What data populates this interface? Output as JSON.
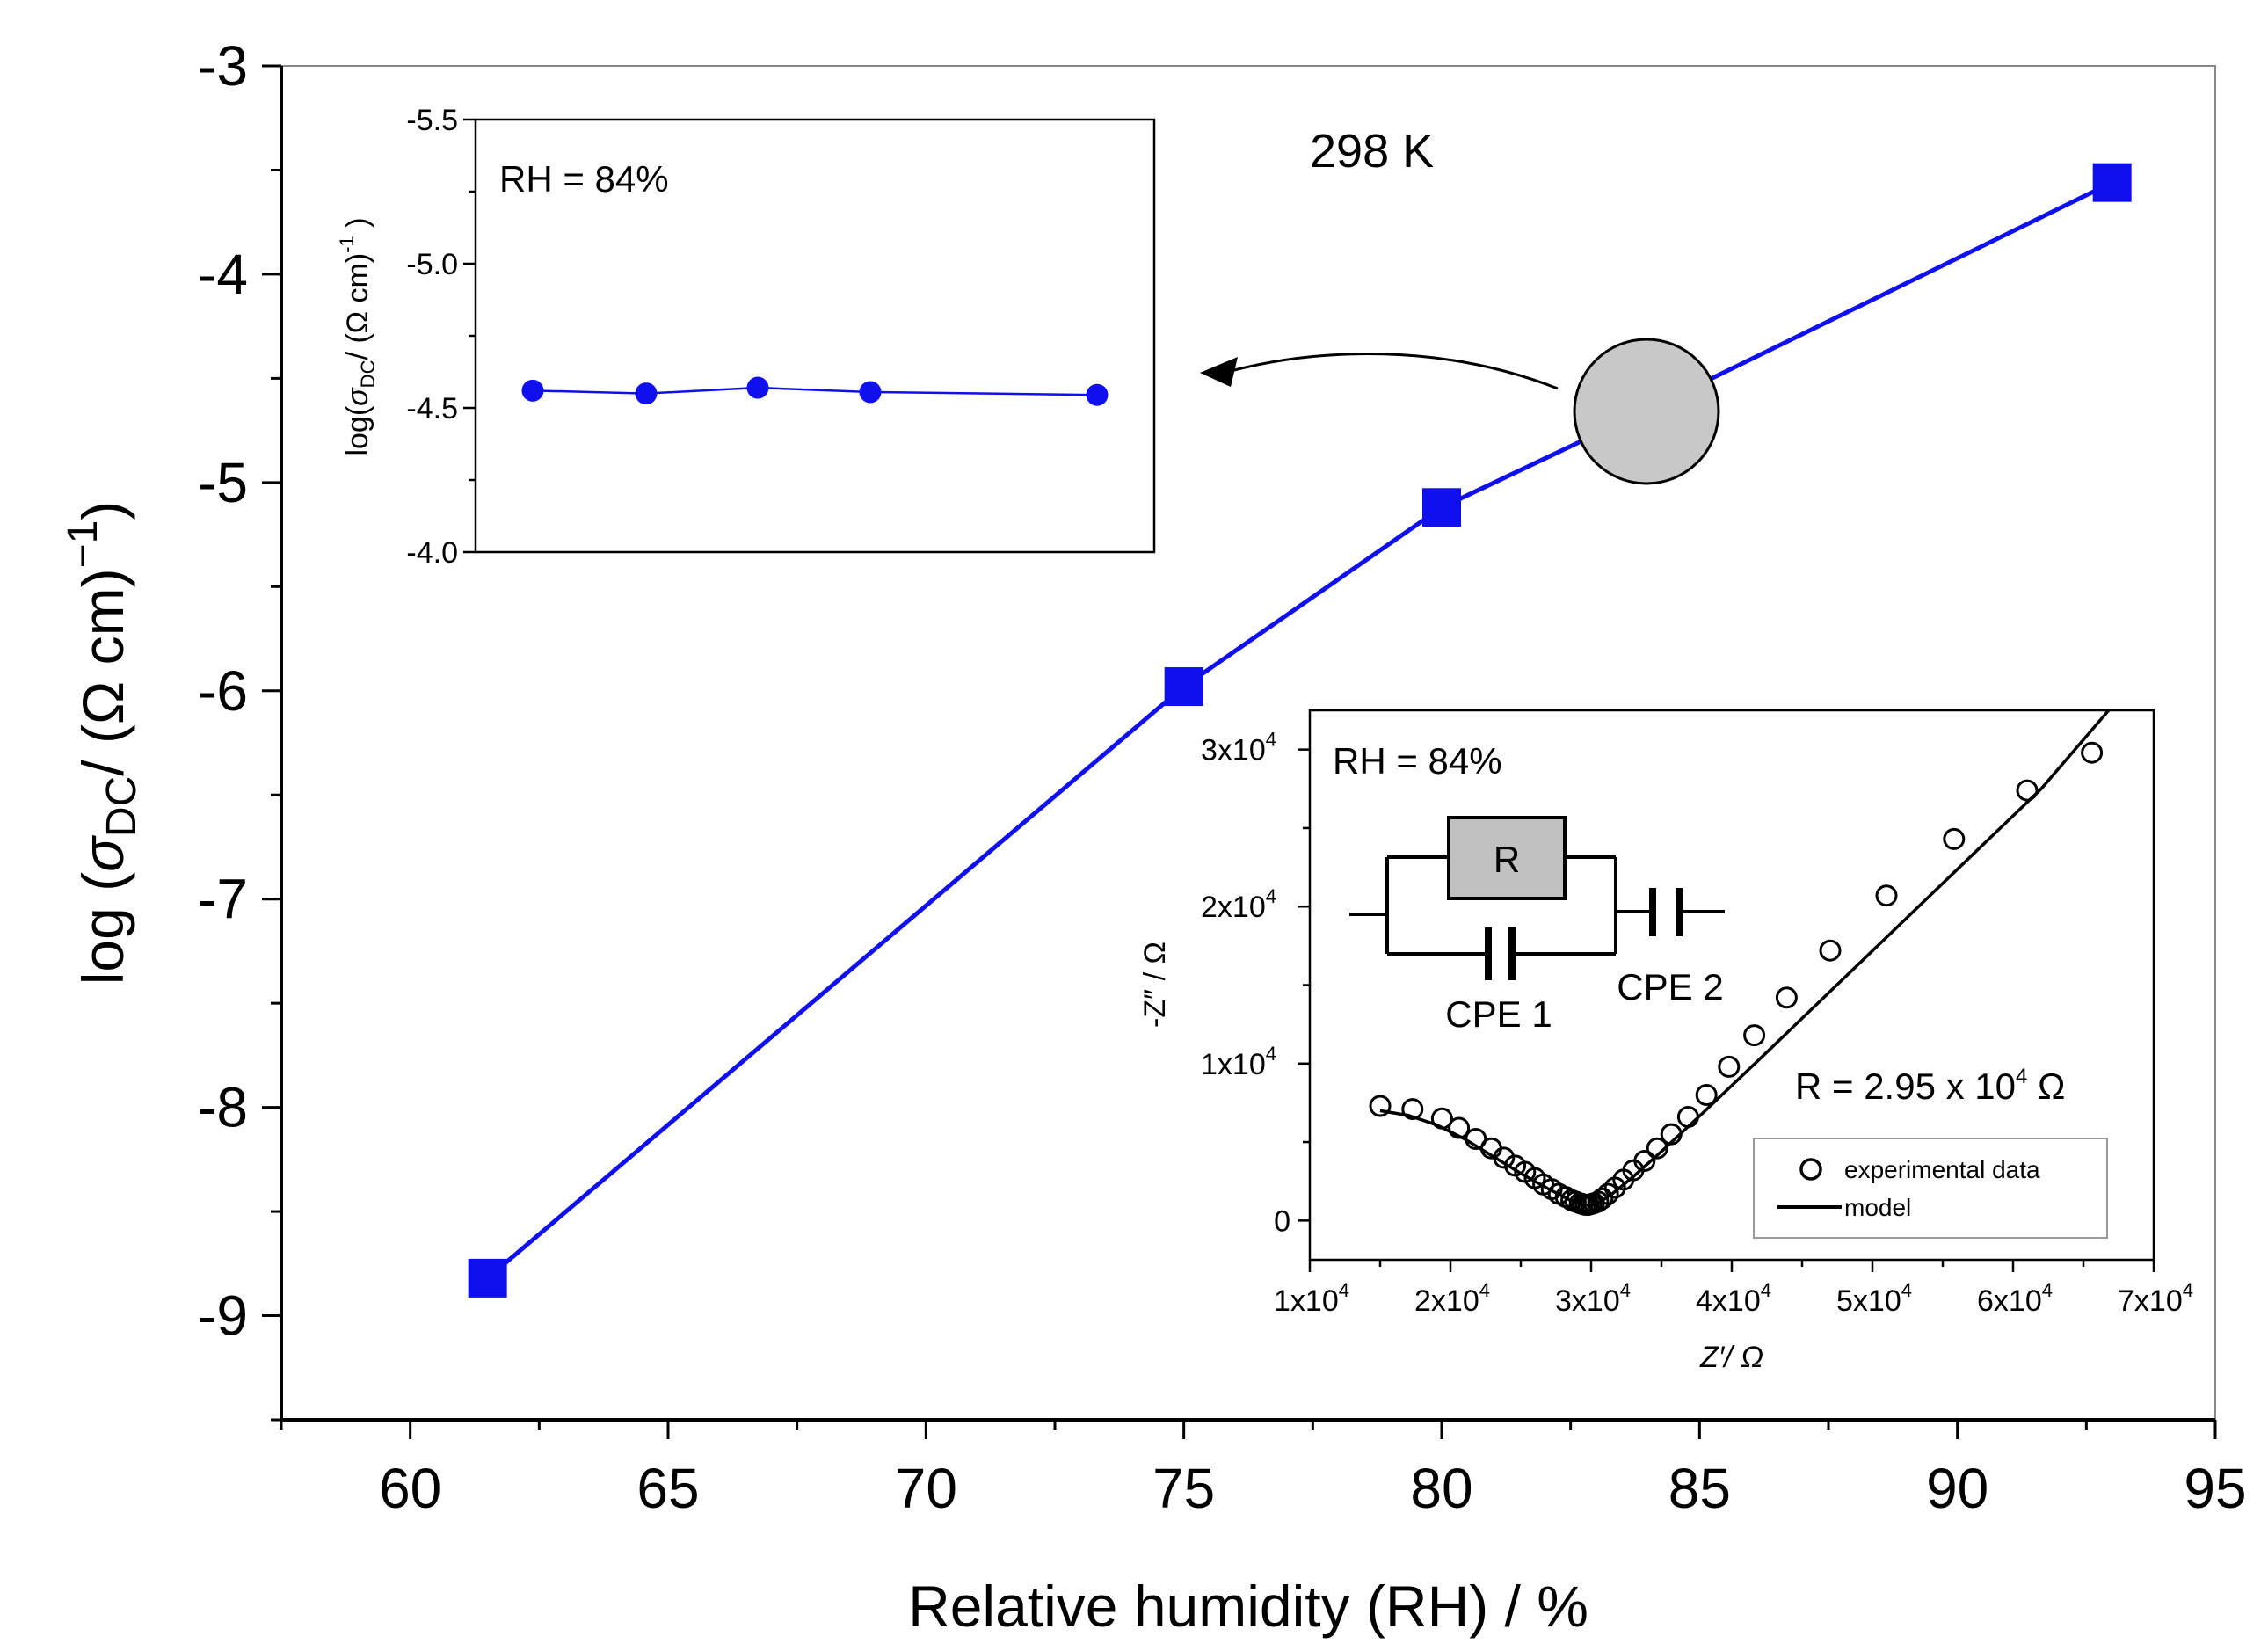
{
  "chart_data": [
    {
      "type": "line",
      "x": [
        61.5,
        75,
        80,
        84,
        93
      ],
      "values": [
        -8.82,
        -5.98,
        -5.12,
        -4.65,
        -3.56
      ],
      "series_name": "log sigma_DC",
      "color": "#1010ee",
      "xlabel": "Relative humidity (RH) / %",
      "ylabel": "log (σDC/ (Ω cm)−1)",
      "xlim": [
        57.5,
        95
      ],
      "ylim": [
        -9.5,
        -3
      ],
      "xticks": [
        "60",
        "65",
        "70",
        "75",
        "80",
        "85",
        "90",
        "95"
      ],
      "yticks": [
        "-3",
        "-4",
        "-5",
        "-6",
        "-7",
        "-8",
        "-9"
      ],
      "annotation": "298 K"
    },
    {
      "type": "line",
      "x": [
        1,
        2,
        3,
        4,
        5
      ],
      "values": [
        -4.56,
        -4.55,
        -4.57,
        -4.555,
        -4.545
      ],
      "color": "#1010ee",
      "ylim": [
        -4.0,
        -5.5
      ],
      "yticks": [
        "-5.5",
        "-5.0",
        "-4.5",
        "-4.0"
      ],
      "ylabel_parts": {
        "a": "log(",
        "sigma": "σ",
        "sub": "DC",
        "b": "/ (Ω cm)",
        "sup": "-1",
        "c": " )"
      },
      "annotation": "RH = 84%"
    },
    {
      "type": "scatter",
      "title": "RH = 84%",
      "xlabel": "Z′/ Ω",
      "ylabel": "-Z″ / Ω",
      "xlim": [
        10000,
        70000
      ],
      "ylim": [
        -2500,
        32500
      ],
      "xticks": [
        {
          "value": 10000,
          "mant": "1x10",
          "exp": "4"
        },
        {
          "value": 20000,
          "mant": "2x10",
          "exp": "4"
        },
        {
          "value": 30000,
          "mant": "3x10",
          "exp": "4"
        },
        {
          "value": 40000,
          "mant": "4x10",
          "exp": "4"
        },
        {
          "value": 50000,
          "mant": "5x10",
          "exp": "4"
        },
        {
          "value": 60000,
          "mant": "6x10",
          "exp": "4"
        },
        {
          "value": 70000,
          "mant": "7x10",
          "exp": "4"
        }
      ],
      "yticks": [
        {
          "value": 0,
          "mant": "0",
          "exp": ""
        },
        {
          "value": 10000,
          "mant": "1x10",
          "exp": "4"
        },
        {
          "value": 20000,
          "mant": "2x10",
          "exp": "4"
        },
        {
          "value": 30000,
          "mant": "3x10",
          "exp": "4"
        }
      ],
      "series": [
        {
          "name": "experimental data",
          "marker": "open-circle",
          "x": [
            15000,
            17300,
            19400,
            20600,
            21800,
            22900,
            23800,
            24600,
            25300,
            26000,
            26600,
            27200,
            27700,
            28200,
            28600,
            28900,
            29200,
            29400,
            29600,
            29800,
            30000,
            30200,
            30500,
            30800,
            31200,
            31700,
            32300,
            33000,
            33800,
            34700,
            35700,
            36900,
            38200,
            39800,
            41600,
            43900,
            47000,
            51000,
            55800,
            61000,
            65600
          ],
          "values": [
            7300,
            7100,
            6500,
            5900,
            5200,
            4600,
            4000,
            3500,
            3100,
            2700,
            2300,
            2000,
            1700,
            1500,
            1300,
            1200,
            1100,
            1050,
            1000,
            1000,
            1050,
            1100,
            1200,
            1400,
            1700,
            2100,
            2600,
            3200,
            3800,
            4600,
            5500,
            6600,
            8000,
            9800,
            11800,
            14200,
            17200,
            20700,
            24300,
            27400,
            29800
          ]
        },
        {
          "name": "model",
          "marker": "line",
          "x": [
            15000,
            17000,
            19000,
            21000,
            23000,
            25000,
            27000,
            28500,
            29500,
            30000,
            30500,
            31500,
            33000,
            35000,
            38000,
            42000,
            47000,
            52000,
            57000,
            62000,
            66800
          ],
          "values": [
            7000,
            6700,
            6100,
            5200,
            4100,
            3000,
            2000,
            1300,
            1000,
            950,
            1100,
            1700,
            2800,
            4400,
            6900,
            10300,
            14600,
            18900,
            23200,
            27500,
            32500
          ]
        }
      ],
      "circuit": {
        "r_label": "R",
        "cpe1_label": "CPE 1",
        "cpe2_label": "CPE 2"
      },
      "fit_text": {
        "prefix": "R = 2.95 x 10",
        "exp": "4",
        "unit": " Ω"
      }
    }
  ]
}
